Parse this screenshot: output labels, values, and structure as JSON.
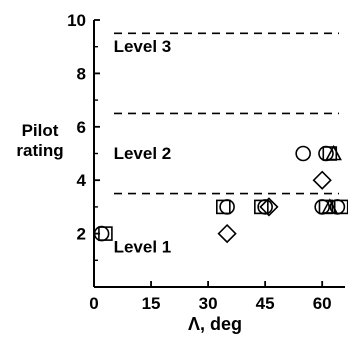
{
  "chart_data": {
    "type": "scatter",
    "title": "",
    "xlabel": "Λ, deg",
    "ylabel_lines": [
      "Pilot",
      "rating"
    ],
    "xlim": [
      0,
      66
    ],
    "ylim": [
      0,
      10
    ],
    "x_ticks": [
      0,
      15,
      30,
      45,
      60
    ],
    "y_ticks": [
      2,
      4,
      6,
      8,
      10
    ],
    "grid": false,
    "level_lines": [
      3.5,
      6.5,
      9.5
    ],
    "level_labels": [
      {
        "text": "Level 3",
        "x": 2,
        "y": 8.8
      },
      {
        "text": "Level 2",
        "x": 2,
        "y": 4.8
      },
      {
        "text": "Level 1",
        "x": 2,
        "y": 1.3
      }
    ],
    "series": [
      {
        "marker": "circle",
        "points": [
          [
            2,
            2
          ],
          [
            35,
            3
          ],
          [
            45,
            3
          ],
          [
            55,
            5
          ],
          [
            61,
            5
          ],
          [
            60,
            3
          ],
          [
            64,
            3
          ]
        ]
      },
      {
        "marker": "square",
        "points": [
          [
            3,
            2
          ],
          [
            34,
            3
          ],
          [
            44,
            3
          ],
          [
            62,
            5
          ],
          [
            61,
            3
          ],
          [
            65,
            3
          ]
        ]
      },
      {
        "marker": "diamond",
        "points": [
          [
            35,
            2
          ],
          [
            46,
            3
          ],
          [
            60,
            4
          ]
        ]
      },
      {
        "marker": "triangle",
        "points": [
          [
            63,
            5
          ],
          [
            62,
            3
          ]
        ]
      }
    ]
  }
}
